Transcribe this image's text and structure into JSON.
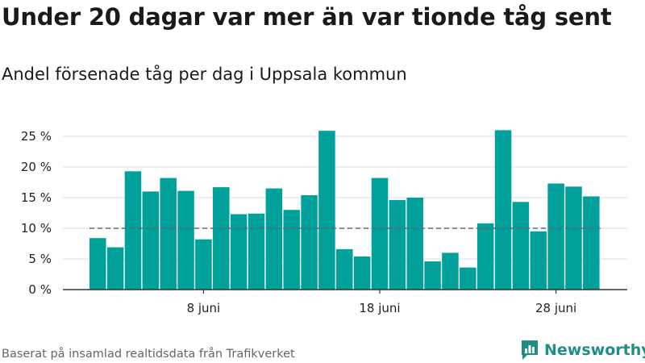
{
  "header": {
    "title": "Under 20 dagar var mer än var tionde tåg sent",
    "subtitle": "Andel försenade tåg per dag i Uppsala kommun"
  },
  "footer": {
    "source": "Baserat på insamlad realtidsdata från Trafikverket"
  },
  "brand": {
    "name": "Newsworthy",
    "icon": "newsworthy-logo-icon"
  },
  "colors": {
    "bar": "#00a19a",
    "grid": "#dddddd",
    "reference_line": "#666666",
    "axis": "#333333",
    "brand": "#1f8f86"
  },
  "chart_data": {
    "type": "bar",
    "title": "Under 20 dagar var mer än var tionde tåg sent",
    "subtitle": "Andel försenade tåg per dag i Uppsala kommun",
    "xlabel": "",
    "ylabel": "",
    "x_unit": "day of June",
    "categories": [
      2,
      3,
      4,
      5,
      6,
      7,
      8,
      9,
      10,
      11,
      12,
      13,
      14,
      15,
      16,
      17,
      18,
      19,
      20,
      21,
      22,
      23,
      24,
      25,
      26,
      27,
      28,
      29,
      30
    ],
    "values": [
      8.4,
      6.9,
      19.3,
      16.0,
      18.2,
      16.1,
      8.2,
      16.7,
      12.3,
      12.4,
      16.5,
      13.0,
      15.4,
      25.9,
      6.6,
      5.4,
      18.2,
      14.6,
      15.0,
      4.6,
      6.0,
      3.6,
      10.8,
      26.0,
      14.3,
      9.5,
      17.3,
      16.8,
      15.2
    ],
    "reference_line": {
      "value": 10,
      "style": "dashed"
    },
    "ylim": [
      0,
      25
    ],
    "yticks": [
      0,
      5,
      10,
      15,
      20,
      25
    ],
    "ytick_labels": [
      "0 %",
      "5 %",
      "10 %",
      "15 %",
      "20 %",
      "25 %"
    ],
    "xticks": [
      8,
      18,
      28
    ],
    "xtick_labels": [
      "8 juni",
      "18 juni",
      "28 juni"
    ],
    "grid": true,
    "legend": "none"
  }
}
